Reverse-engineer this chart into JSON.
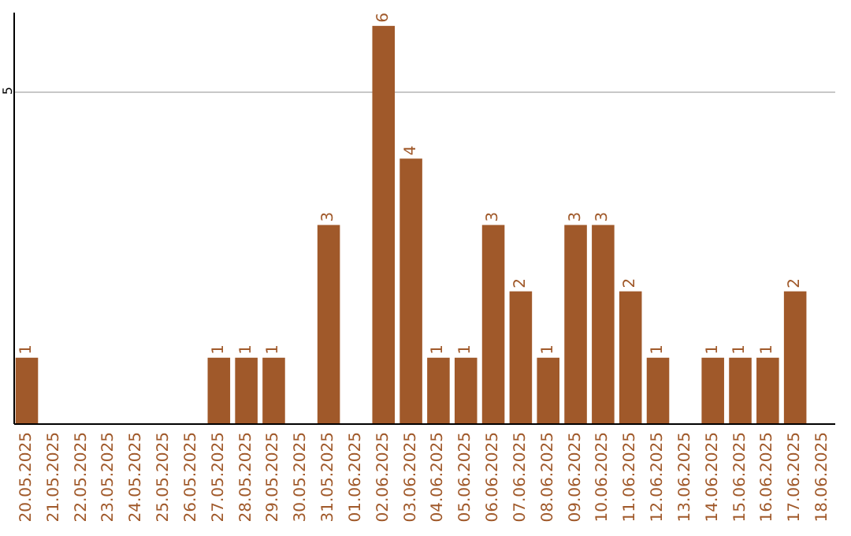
{
  "chart_data": {
    "type": "bar",
    "categories": [
      "20.05.2025",
      "21.05.2025",
      "22.05.2025",
      "23.05.2025",
      "24.05.2025",
      "25.05.2025",
      "26.05.2025",
      "27.05.2025",
      "28.05.2025",
      "29.05.2025",
      "30.05.2025",
      "31.05.2025",
      "01.06.2025",
      "02.06.2025",
      "03.06.2025",
      "04.06.2025",
      "05.06.2025",
      "06.06.2025",
      "07.06.2025",
      "08.06.2025",
      "09.06.2025",
      "10.06.2025",
      "11.06.2025",
      "12.06.2025",
      "13.06.2025",
      "14.06.2025",
      "15.06.2025",
      "16.06.2025",
      "17.06.2025",
      "18.06.2025"
    ],
    "values": [
      1,
      0,
      0,
      0,
      0,
      0,
      0,
      1,
      1,
      1,
      0,
      3,
      0,
      6,
      4,
      1,
      1,
      3,
      2,
      1,
      3,
      3,
      2,
      1,
      0,
      1,
      1,
      1,
      2,
      0
    ],
    "value_labels": [
      "1",
      null,
      null,
      null,
      null,
      null,
      null,
      "1",
      "1",
      "1",
      null,
      "3",
      null,
      "6",
      "4",
      "1",
      "1",
      "3",
      "2",
      "1",
      "3",
      "3",
      "2",
      "1",
      null,
      "1",
      "1",
      "1",
      "2",
      null
    ],
    "color": "#a0592a",
    "ylim": [
      0,
      6.2
    ],
    "yticks": [
      5
    ],
    "grid": "y"
  }
}
